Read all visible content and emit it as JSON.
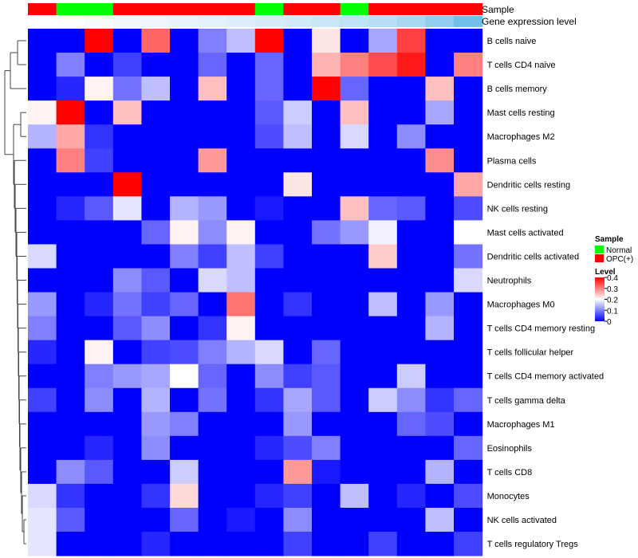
{
  "chart_data": {
    "type": "heatmap",
    "annotation_tracks": {
      "sample": {
        "label": "Sample",
        "values": [
          "OPC(+)",
          "Normal",
          "Normal",
          "OPC(+)",
          "OPC(+)",
          "OPC(+)",
          "OPC(+)",
          "OPC(+)",
          "Normal",
          "OPC(+)",
          "OPC(+)",
          "Normal",
          "OPC(+)",
          "OPC(+)",
          "OPC(+)",
          "OPC(+)"
        ]
      },
      "gene_expression_level": {
        "label": "Gene expression level",
        "values": [
          0.0,
          0.02,
          0.05,
          0.08,
          0.12,
          0.15,
          0.18,
          0.22,
          0.26,
          0.3,
          0.35,
          0.4,
          0.45,
          0.55,
          0.7,
          0.9
        ],
        "color_low": "#ffffff",
        "color_high": "#62b8e6"
      }
    },
    "rows": [
      "B cells naive",
      "T cells CD4 naive",
      "B cells memory",
      "Mast cells resting",
      "Macrophages M2",
      "Plasma cells",
      "Dendritic cells resting",
      "NK cells resting",
      "Mast cells activated",
      "Dendritic cells activated",
      "Neutrophils",
      "Macrophages M0",
      "T cells CD4 memory resting",
      "T cells follicular helper",
      "T cells CD4 memory activated",
      "T cells gamma delta",
      "Macrophages M1",
      "Eosinophils",
      "T cells CD8",
      "Monocytes",
      "NK cells activated",
      "T cells regulatory  Tregs"
    ],
    "values": [
      [
        0.0,
        0.0,
        0.4,
        0.0,
        0.32,
        0.0,
        0.1,
        0.15,
        0.4,
        0.0,
        0.22,
        0.0,
        0.13,
        0.35,
        0.0,
        0.0
      ],
      [
        0.0,
        0.1,
        0.0,
        0.05,
        0.0,
        0.0,
        0.08,
        0.0,
        0.08,
        0.0,
        0.26,
        0.3,
        0.34,
        0.38,
        0.0,
        0.3
      ],
      [
        0.0,
        0.03,
        0.21,
        0.09,
        0.15,
        0.0,
        0.25,
        0.0,
        0.08,
        0.0,
        0.4,
        0.08,
        0.0,
        0.0,
        0.25,
        0.0
      ],
      [
        0.21,
        0.4,
        0.0,
        0.25,
        0.0,
        0.0,
        0.0,
        0.0,
        0.07,
        0.16,
        0.0,
        0.25,
        0.0,
        0.0,
        0.13,
        0.0
      ],
      [
        0.14,
        0.27,
        0.04,
        0.0,
        0.0,
        0.0,
        0.0,
        0.0,
        0.06,
        0.15,
        0.0,
        0.17,
        0.0,
        0.11,
        0.0,
        0.0
      ],
      [
        0.0,
        0.3,
        0.05,
        0.0,
        0.0,
        0.0,
        0.28,
        0.0,
        0.0,
        0.0,
        0.0,
        0.0,
        0.0,
        0.0,
        0.29,
        0.0
      ],
      [
        0.0,
        0.0,
        0.0,
        0.4,
        0.0,
        0.0,
        0.0,
        0.0,
        0.0,
        0.22,
        0.0,
        0.0,
        0.0,
        0.0,
        0.0,
        0.27
      ],
      [
        0.0,
        0.03,
        0.07,
        0.18,
        0.0,
        0.14,
        0.12,
        0.0,
        0.02,
        0.0,
        0.0,
        0.25,
        0.08,
        0.07,
        0.0,
        0.06
      ],
      [
        0.0,
        0.0,
        0.0,
        0.0,
        0.08,
        0.21,
        0.11,
        0.21,
        0.0,
        0.0,
        0.09,
        0.12,
        0.19,
        0.0,
        0.0,
        0.2
      ],
      [
        0.17,
        0.0,
        0.0,
        0.0,
        0.0,
        0.1,
        0.05,
        0.15,
        0.05,
        0.0,
        0.0,
        0.0,
        0.24,
        0.0,
        0.0,
        0.09
      ],
      [
        0.0,
        0.0,
        0.0,
        0.11,
        0.07,
        0.0,
        0.17,
        0.15,
        0.0,
        0.0,
        0.0,
        0.0,
        0.0,
        0.0,
        0.0,
        0.17
      ],
      [
        0.12,
        0.0,
        0.03,
        0.09,
        0.05,
        0.08,
        0.0,
        0.31,
        0.0,
        0.04,
        0.0,
        0.0,
        0.15,
        0.0,
        0.12,
        0.0
      ],
      [
        0.1,
        0.0,
        0.0,
        0.07,
        0.11,
        0.0,
        0.04,
        0.21,
        0.0,
        0.0,
        0.0,
        0.0,
        0.0,
        0.0,
        0.14,
        0.0
      ],
      [
        0.03,
        0.0,
        0.21,
        0.0,
        0.05,
        0.06,
        0.1,
        0.14,
        0.17,
        0.0,
        0.08,
        0.0,
        0.0,
        0.0,
        0.0,
        0.0
      ],
      [
        0.0,
        0.0,
        0.1,
        0.12,
        0.13,
        0.2,
        0.08,
        0.0,
        0.11,
        0.05,
        0.07,
        0.0,
        0.0,
        0.16,
        0.0,
        0.0
      ],
      [
        0.05,
        0.0,
        0.11,
        0.0,
        0.14,
        0.0,
        0.09,
        0.0,
        0.04,
        0.13,
        0.07,
        0.0,
        0.16,
        0.11,
        0.04,
        0.08
      ],
      [
        0.0,
        0.0,
        0.0,
        0.0,
        0.12,
        0.1,
        0.0,
        0.0,
        0.0,
        0.12,
        0.0,
        0.0,
        0.0,
        0.08,
        0.06,
        0.0
      ],
      [
        0.0,
        0.0,
        0.03,
        0.0,
        0.11,
        0.0,
        0.0,
        0.0,
        0.03,
        0.06,
        0.1,
        0.0,
        0.0,
        0.0,
        0.0,
        0.08
      ],
      [
        0.0,
        0.11,
        0.07,
        0.0,
        0.0,
        0.16,
        0.0,
        0.0,
        0.0,
        0.28,
        0.02,
        0.0,
        0.0,
        0.0,
        0.14,
        0.0
      ],
      [
        0.17,
        0.04,
        0.0,
        0.0,
        0.04,
        0.23,
        0.0,
        0.0,
        0.03,
        0.05,
        0.0,
        0.15,
        0.0,
        0.03,
        0.0,
        0.06
      ],
      [
        0.18,
        0.07,
        0.0,
        0.0,
        0.0,
        0.08,
        0.0,
        0.02,
        0.0,
        0.11,
        0.0,
        0.0,
        0.0,
        0.0,
        0.15,
        0.0
      ],
      [
        0.18,
        0.0,
        0.0,
        0.0,
        0.03,
        0.0,
        0.0,
        0.0,
        0.0,
        0.05,
        0.0,
        0.0,
        0.05,
        0.0,
        0.0,
        0.05
      ]
    ],
    "color_scale": {
      "min": 0,
      "max": 0.4,
      "low": "#0000ff",
      "mid": "#ffffff",
      "high": "#ff0000",
      "mid_value": 0.2
    },
    "legend": {
      "sample_title": "Sample",
      "sample_entries": [
        {
          "label": "Normal",
          "color": "#00ff00"
        },
        {
          "label": "OPC(+)",
          "color": "#ff0000"
        }
      ],
      "level_title": "Level",
      "level_ticks": [
        "0.4",
        "0.3",
        "0.2",
        "0.1",
        "0"
      ],
      "placement": "right"
    },
    "row_dendrogram": true
  }
}
